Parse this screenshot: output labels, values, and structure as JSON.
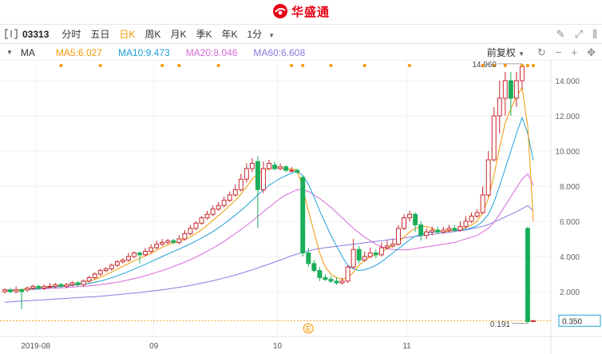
{
  "brand": {
    "name": "华盛通",
    "color": "#e60012"
  },
  "toolbar": {
    "code": "03313",
    "timeframes": [
      "分时",
      "五日",
      "日K",
      "周K",
      "月K",
      "季K",
      "年K"
    ],
    "active_timeframe": "日K",
    "minute_select": "1分",
    "icons": [
      "pencil-icon",
      "expand-icon",
      "panel-toggle-icon"
    ]
  },
  "ma_bar": {
    "label": "MA",
    "items": [
      {
        "text": "MA5:6.027",
        "color": "#f39800"
      },
      {
        "text": "MA10:9.473",
        "color": "#1e9fd8"
      },
      {
        "text": "MA20:8.046",
        "color": "#d86ad8"
      },
      {
        "text": "MA60:6.608",
        "color": "#8a7ae0"
      }
    ],
    "adjust": "前复权",
    "icons": [
      "refresh-icon",
      "minus-icon",
      "plus-icon",
      "move-icon"
    ]
  },
  "chart_data": {
    "type": "candlestick",
    "ylim": [
      0,
      15
    ],
    "yticks": [
      "2.000",
      "4.000",
      "6.000",
      "8.000",
      "10.000",
      "12.000",
      "14.000"
    ],
    "xlabels": [
      "2019-08",
      "09",
      "10",
      "11"
    ],
    "max_label": "14.960",
    "min_label": "0.191",
    "last_price": "0.350",
    "event_marker": "E",
    "colors": {
      "up": "#c8272d",
      "down": "#1aae5a",
      "ma5": "#f39800",
      "ma10": "#1e9fd8",
      "ma20": "#d86ad8",
      "ma60": "#8a7ae0",
      "dots": "#f39800"
    },
    "candles": [
      [
        2.0,
        2.1,
        2.2,
        1.9
      ],
      [
        2.1,
        2.0,
        2.2,
        1.9
      ],
      [
        2.0,
        2.1,
        2.3,
        1.9
      ],
      [
        2.1,
        2.0,
        2.2,
        1.0
      ],
      [
        2.1,
        2.2,
        2.3,
        2.0
      ],
      [
        2.2,
        2.3,
        2.4,
        2.1
      ],
      [
        2.3,
        2.2,
        2.4,
        2.1
      ],
      [
        2.2,
        2.3,
        2.4,
        2.1
      ],
      [
        2.3,
        2.3,
        2.5,
        2.2
      ],
      [
        2.3,
        2.4,
        2.5,
        2.2
      ],
      [
        2.4,
        2.3,
        2.5,
        2.2
      ],
      [
        2.3,
        2.4,
        2.5,
        2.2
      ],
      [
        2.4,
        2.5,
        2.6,
        2.3
      ],
      [
        2.5,
        2.4,
        2.6,
        2.3
      ],
      [
        2.4,
        2.6,
        2.7,
        2.3
      ],
      [
        2.6,
        2.8,
        2.9,
        2.5
      ],
      [
        2.8,
        3.0,
        3.1,
        2.7
      ],
      [
        3.0,
        3.2,
        3.3,
        2.9
      ],
      [
        3.2,
        3.3,
        3.4,
        3.1
      ],
      [
        3.3,
        3.5,
        3.6,
        3.2
      ],
      [
        3.5,
        3.7,
        3.8,
        3.4
      ],
      [
        3.7,
        3.8,
        3.9,
        3.6
      ],
      [
        3.8,
        4.0,
        4.2,
        3.7
      ],
      [
        4.0,
        4.2,
        4.3,
        3.9
      ],
      [
        4.2,
        4.1,
        4.3,
        3.6
      ],
      [
        4.1,
        4.3,
        4.5,
        4.0
      ],
      [
        4.3,
        4.5,
        4.7,
        4.2
      ],
      [
        4.5,
        4.7,
        4.9,
        4.4
      ],
      [
        4.7,
        4.8,
        5.0,
        4.6
      ],
      [
        4.8,
        4.9,
        5.0,
        4.7
      ],
      [
        4.9,
        4.8,
        5.0,
        4.7
      ],
      [
        4.8,
        5.0,
        5.2,
        4.7
      ],
      [
        5.0,
        5.3,
        5.5,
        4.9
      ],
      [
        5.3,
        5.6,
        5.8,
        5.2
      ],
      [
        5.6,
        5.9,
        6.0,
        5.5
      ],
      [
        5.9,
        6.2,
        6.3,
        5.8
      ],
      [
        6.2,
        6.4,
        6.6,
        6.1
      ],
      [
        6.4,
        6.7,
        6.9,
        6.3
      ],
      [
        6.7,
        6.9,
        7.1,
        6.6
      ],
      [
        6.9,
        7.2,
        7.4,
        6.8
      ],
      [
        7.2,
        7.5,
        7.7,
        7.1
      ],
      [
        7.5,
        7.8,
        8.1,
        7.4
      ],
      [
        7.8,
        8.4,
        8.7,
        7.7
      ],
      [
        8.4,
        9.0,
        9.3,
        8.2
      ],
      [
        9.0,
        9.3,
        9.6,
        8.8
      ],
      [
        9.4,
        7.8,
        9.7,
        5.6
      ],
      [
        7.8,
        9.0,
        9.4,
        7.6
      ],
      [
        9.0,
        9.3,
        9.5,
        8.9
      ],
      [
        9.2,
        9.0,
        9.4,
        8.9
      ],
      [
        9.0,
        9.1,
        9.3,
        8.9
      ],
      [
        9.1,
        8.9,
        9.2,
        8.8
      ],
      [
        8.9,
        8.9,
        9.1,
        8.8
      ],
      [
        8.9,
        8.8,
        9.0,
        8.7
      ],
      [
        8.5,
        4.2,
        8.6,
        4.0
      ],
      [
        4.2,
        3.6,
        4.5,
        3.4
      ],
      [
        3.6,
        3.2,
        3.8,
        3.1
      ],
      [
        3.2,
        2.8,
        3.4,
        2.6
      ],
      [
        2.8,
        2.7,
        3.0,
        2.6
      ],
      [
        2.7,
        2.6,
        2.9,
        2.5
      ],
      [
        2.6,
        2.5,
        2.8,
        2.4
      ],
      [
        2.5,
        2.6,
        2.8,
        2.4
      ],
      [
        2.6,
        3.4,
        3.5,
        2.5
      ],
      [
        3.4,
        4.4,
        5.0,
        3.3
      ],
      [
        4.4,
        3.8,
        4.6,
        3.6
      ],
      [
        3.8,
        4.0,
        4.3,
        3.7
      ],
      [
        4.0,
        4.2,
        4.5,
        3.9
      ],
      [
        4.2,
        4.1,
        4.4,
        3.9
      ],
      [
        4.1,
        4.5,
        4.8,
        4.0
      ],
      [
        4.5,
        4.6,
        4.9,
        4.4
      ],
      [
        4.6,
        4.7,
        5.0,
        4.5
      ],
      [
        4.7,
        5.6,
        5.8,
        4.6
      ],
      [
        5.6,
        6.2,
        6.4,
        5.5
      ],
      [
        6.2,
        6.4,
        6.6,
        6.0
      ],
      [
        6.4,
        5.8,
        6.5,
        5.4
      ],
      [
        5.8,
        5.2,
        6.0,
        4.9
      ],
      [
        5.2,
        5.4,
        5.6,
        5.0
      ],
      [
        5.4,
        5.5,
        5.7,
        5.2
      ],
      [
        5.5,
        5.4,
        5.7,
        5.3
      ],
      [
        5.4,
        5.5,
        5.7,
        5.3
      ],
      [
        5.5,
        5.6,
        5.8,
        5.4
      ],
      [
        5.6,
        5.5,
        5.8,
        5.4
      ],
      [
        5.5,
        5.7,
        6.0,
        5.4
      ],
      [
        5.7,
        6.0,
        6.3,
        5.6
      ],
      [
        6.0,
        6.3,
        6.5,
        5.9
      ],
      [
        6.3,
        6.5,
        6.7,
        6.2
      ],
      [
        6.5,
        7.5,
        8.0,
        6.4
      ],
      [
        7.5,
        9.5,
        10.0,
        7.4
      ],
      [
        9.5,
        12.0,
        12.5,
        9.4
      ],
      [
        12.0,
        13.0,
        14.0,
        11.0
      ],
      [
        13.0,
        14.0,
        14.5,
        12.0
      ],
      [
        14.0,
        13.0,
        14.5,
        12.0
      ],
      [
        13.0,
        14.0,
        14.5,
        12.5
      ],
      [
        14.0,
        14.8,
        14.96,
        13.5
      ],
      [
        5.6,
        0.3,
        5.7,
        0.191
      ],
      [
        0.3,
        0.35,
        0.4,
        0.3
      ]
    ],
    "ma5": [
      2.05,
      2.07,
      2.1,
      2.12,
      2.15,
      2.2,
      2.23,
      2.26,
      2.3,
      2.33,
      2.35,
      2.38,
      2.42,
      2.46,
      2.52,
      2.6,
      2.7,
      2.82,
      2.97,
      3.12,
      3.28,
      3.44,
      3.6,
      3.76,
      3.9,
      4.03,
      4.18,
      4.35,
      4.52,
      4.66,
      4.78,
      4.86,
      4.98,
      5.12,
      5.3,
      5.52,
      5.78,
      6.05,
      6.33,
      6.6,
      6.9,
      7.2,
      7.55,
      7.96,
      8.4,
      8.7,
      8.9,
      9.0,
      9.05,
      9.05,
      9.0,
      8.98,
      8.9,
      7.9,
      6.6,
      5.4,
      4.2,
      3.4,
      3.0,
      2.8,
      2.7,
      2.8,
      3.1,
      3.5,
      3.8,
      4.0,
      4.1,
      4.25,
      4.45,
      4.6,
      4.8,
      5.1,
      5.4,
      5.6,
      5.7,
      5.7,
      5.6,
      5.45,
      5.4,
      5.45,
      5.5,
      5.55,
      5.65,
      5.8,
      6.0,
      6.5,
      7.3,
      8.6,
      10.2,
      11.6,
      12.4,
      13.1,
      13.6,
      11.4,
      6.0
    ],
    "ma10": [
      2.05,
      2.06,
      2.08,
      2.1,
      2.12,
      2.15,
      2.18,
      2.21,
      2.24,
      2.27,
      2.3,
      2.33,
      2.36,
      2.39,
      2.42,
      2.47,
      2.53,
      2.6,
      2.69,
      2.79,
      2.9,
      3.02,
      3.15,
      3.28,
      3.42,
      3.56,
      3.7,
      3.85,
      4.0,
      4.14,
      4.28,
      4.42,
      4.57,
      4.72,
      4.88,
      5.05,
      5.23,
      5.42,
      5.63,
      5.86,
      6.1,
      6.36,
      6.62,
      6.9,
      7.2,
      7.5,
      7.8,
      8.05,
      8.25,
      8.45,
      8.6,
      8.75,
      8.85,
      8.6,
      8.1,
      7.4,
      6.6,
      5.9,
      5.2,
      4.6,
      4.0,
      3.5,
      3.3,
      3.2,
      3.25,
      3.35,
      3.5,
      3.7,
      3.95,
      4.2,
      4.45,
      4.7,
      4.95,
      5.15,
      5.25,
      5.35,
      5.38,
      5.4,
      5.42,
      5.45,
      5.48,
      5.5,
      5.55,
      5.62,
      5.75,
      6.0,
      6.4,
      7.1,
      8.0,
      9.0,
      10.0,
      11.0,
      11.9,
      11.0,
      9.47
    ],
    "ma20": [
      2.1,
      2.1,
      2.1,
      2.11,
      2.12,
      2.13,
      2.15,
      2.16,
      2.18,
      2.2,
      2.22,
      2.24,
      2.26,
      2.28,
      2.3,
      2.33,
      2.36,
      2.4,
      2.44,
      2.49,
      2.54,
      2.6,
      2.67,
      2.74,
      2.82,
      2.91,
      3.0,
      3.1,
      3.2,
      3.31,
      3.43,
      3.55,
      3.68,
      3.82,
      3.97,
      4.13,
      4.3,
      4.48,
      4.67,
      4.87,
      5.08,
      5.3,
      5.53,
      5.77,
      6.02,
      6.28,
      6.55,
      6.8,
      7.05,
      7.3,
      7.5,
      7.65,
      7.8,
      7.8,
      7.7,
      7.5,
      7.3,
      7.05,
      6.8,
      6.5,
      6.2,
      5.9,
      5.6,
      5.35,
      5.1,
      4.9,
      4.7,
      4.55,
      4.45,
      4.4,
      4.38,
      4.38,
      4.4,
      4.45,
      4.5,
      4.55,
      4.6,
      4.65,
      4.7,
      4.75,
      4.8,
      4.9,
      5.0,
      5.1,
      5.2,
      5.4,
      5.6,
      5.95,
      6.4,
      6.9,
      7.4,
      7.9,
      8.4,
      8.7,
      8.05
    ],
    "ma60": [
      1.4,
      1.42,
      1.44,
      1.46,
      1.48,
      1.5,
      1.52,
      1.54,
      1.56,
      1.58,
      1.6,
      1.62,
      1.64,
      1.66,
      1.68,
      1.7,
      1.72,
      1.74,
      1.77,
      1.8,
      1.83,
      1.86,
      1.89,
      1.92,
      1.95,
      1.99,
      2.03,
      2.07,
      2.11,
      2.15,
      2.2,
      2.25,
      2.3,
      2.36,
      2.42,
      2.48,
      2.55,
      2.62,
      2.7,
      2.78,
      2.86,
      2.95,
      3.04,
      3.14,
      3.24,
      3.35,
      3.46,
      3.57,
      3.68,
      3.8,
      3.92,
      4.04,
      4.14,
      4.24,
      4.32,
      4.4,
      4.46,
      4.5,
      4.54,
      4.58,
      4.62,
      4.66,
      4.7,
      4.74,
      4.78,
      4.82,
      4.86,
      4.9,
      4.94,
      4.98,
      5.02,
      5.06,
      5.1,
      5.14,
      5.18,
      5.22,
      5.26,
      5.3,
      5.34,
      5.38,
      5.42,
      5.47,
      5.52,
      5.58,
      5.64,
      5.72,
      5.82,
      5.95,
      6.1,
      6.25,
      6.4,
      6.55,
      6.72,
      6.9,
      6.6
    ],
    "dot_candles": [
      10,
      17,
      28,
      31,
      38,
      51,
      53,
      58,
      64,
      72,
      85,
      87,
      89,
      92,
      93,
      94
    ]
  }
}
